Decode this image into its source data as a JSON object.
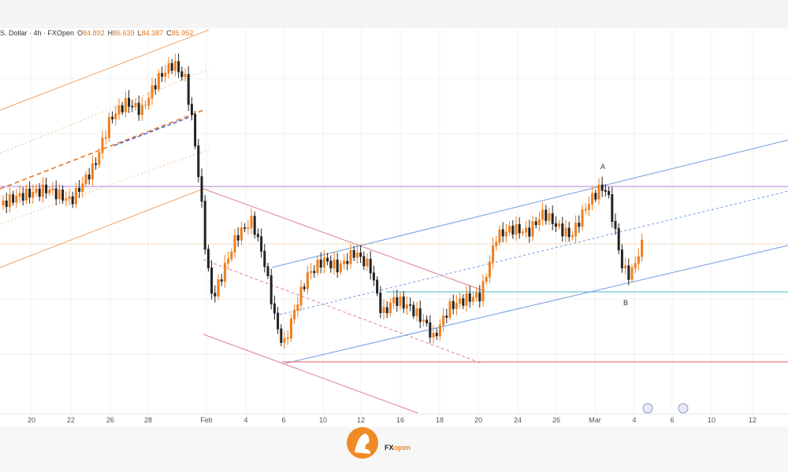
{
  "header": {
    "symbol": "S. Dollar · 4h · FXOpen",
    "ohlc": [
      {
        "key": "O",
        "value": "84.892"
      },
      {
        "key": "H",
        "value": "86.639"
      },
      {
        "key": "L",
        "value": "84.387"
      },
      {
        "key": "C",
        "value": "85.952"
      }
    ]
  },
  "x_axis": {
    "labels": [
      "20",
      "22",
      "26",
      "28",
      "Feb",
      "4",
      "6",
      "10",
      "12",
      "16",
      "18",
      "20",
      "24",
      "26",
      "Mar",
      "4",
      "6",
      "10",
      "12"
    ]
  },
  "annotations": {
    "point_a": "A",
    "point_b": "B"
  },
  "logo": {
    "part1": "FX",
    "part2": "open"
  }
}
